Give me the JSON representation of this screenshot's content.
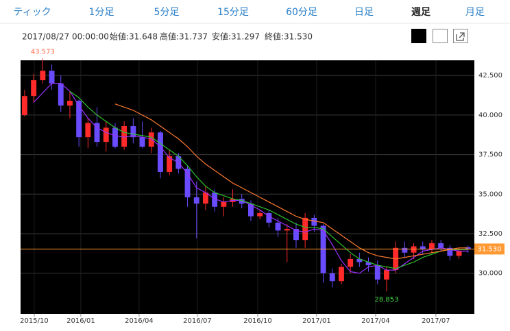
{
  "tabs": [
    "ティック",
    "1分足",
    "5分足",
    "15分足",
    "60分足",
    "日足",
    "週足",
    "月足"
  ],
  "selected_tab": 6,
  "info": [
    "2017/08/27 00:00:00",
    "始値:31.648",
    "高値:31.737",
    "安値:31.297",
    "終値:31.530"
  ],
  "chart_data": {
    "type": "candlestick",
    "up_color": "#ff2a2a",
    "down_color": "#6a4cff",
    "candles": [
      [
        40.0,
        41.6,
        39.9,
        41.2
      ],
      [
        41.2,
        42.6,
        40.8,
        42.2
      ],
      [
        42.2,
        43.573,
        42.0,
        42.8
      ],
      [
        42.8,
        43.2,
        41.6,
        42.0
      ],
      [
        42.0,
        42.5,
        40.2,
        40.6
      ],
      [
        40.6,
        41.5,
        39.8,
        40.9
      ],
      [
        40.9,
        41.0,
        38.0,
        38.6
      ],
      [
        38.6,
        39.8,
        37.9,
        39.5
      ],
      [
        39.5,
        40.5,
        38.0,
        38.3
      ],
      [
        38.3,
        39.6,
        37.7,
        39.2
      ],
      [
        39.2,
        39.5,
        37.9,
        38.0
      ],
      [
        38.0,
        39.6,
        37.8,
        39.3
      ],
      [
        39.3,
        39.8,
        38.2,
        38.6
      ],
      [
        38.6,
        39.6,
        37.9,
        38.0
      ],
      [
        38.0,
        39.2,
        37.6,
        38.9
      ],
      [
        38.9,
        39.0,
        36.0,
        36.4
      ],
      [
        36.4,
        37.8,
        36.2,
        37.4
      ],
      [
        37.4,
        37.6,
        36.3,
        36.6
      ],
      [
        36.6,
        36.8,
        34.2,
        34.8
      ],
      [
        34.8,
        35.8,
        32.2,
        34.4
      ],
      [
        34.4,
        35.5,
        34.0,
        35.1
      ],
      [
        35.1,
        35.3,
        33.9,
        34.2
      ],
      [
        34.2,
        34.8,
        33.6,
        34.5
      ],
      [
        34.5,
        35.3,
        34.2,
        34.7
      ],
      [
        34.7,
        35.0,
        34.1,
        34.4
      ],
      [
        34.4,
        34.6,
        33.3,
        33.6
      ],
      [
        33.6,
        34.0,
        33.4,
        33.8
      ],
      [
        33.8,
        34.0,
        32.9,
        33.2
      ],
      [
        33.2,
        33.5,
        32.3,
        32.7
      ],
      [
        32.7,
        33.1,
        30.7,
        32.8
      ],
      [
        32.8,
        33.2,
        31.6,
        32.1
      ],
      [
        32.1,
        33.8,
        31.6,
        33.5
      ],
      [
        33.5,
        33.7,
        32.6,
        33.0
      ],
      [
        33.0,
        33.1,
        29.4,
        30.0
      ],
      [
        30.0,
        30.3,
        29.1,
        29.5
      ],
      [
        29.5,
        30.6,
        29.3,
        30.4
      ],
      [
        30.4,
        31.2,
        30.0,
        30.9
      ],
      [
        30.9,
        31.3,
        30.4,
        30.7
      ],
      [
        30.7,
        31.0,
        30.1,
        30.5
      ],
      [
        30.5,
        30.8,
        29.3,
        29.6
      ],
      [
        29.6,
        30.4,
        28.853,
        30.2
      ],
      [
        30.2,
        32.0,
        30.0,
        31.6
      ],
      [
        31.6,
        32.0,
        31.0,
        31.3
      ],
      [
        31.3,
        31.9,
        30.9,
        31.7
      ],
      [
        31.7,
        32.0,
        31.2,
        31.5
      ],
      [
        31.5,
        32.1,
        31.3,
        31.9
      ],
      [
        31.9,
        32.1,
        31.4,
        31.6
      ],
      [
        31.6,
        31.8,
        30.8,
        31.1
      ],
      [
        31.1,
        31.6,
        30.9,
        31.4
      ],
      [
        31.648,
        31.737,
        31.297,
        31.53
      ]
    ],
    "moving_averages": [
      {
        "color": "#9b30ff",
        "values": [
          null,
          40.8,
          41.4,
          42.0,
          42.0,
          41.5,
          40.6,
          39.8,
          39.2,
          38.9,
          38.7,
          38.6,
          38.7,
          38.6,
          38.5,
          38.0,
          37.3,
          37.0,
          36.3,
          35.4,
          35.1,
          34.7,
          34.5,
          34.6,
          34.6,
          34.3,
          34.0,
          33.6,
          33.3,
          33.0,
          32.7,
          32.6,
          32.8,
          32.7,
          31.8,
          30.8,
          30.1,
          30.0,
          30.4,
          30.5,
          30.2,
          30.2,
          30.6,
          31.0,
          31.4,
          31.5,
          31.6,
          31.5,
          31.4,
          31.4
        ]
      },
      {
        "color": "#2ec02e",
        "values": [
          null,
          null,
          null,
          null,
          null,
          41.5,
          41.1,
          40.5,
          40.0,
          39.6,
          39.2,
          38.9,
          38.8,
          38.7,
          38.6,
          38.2,
          37.8,
          37.4,
          36.8,
          36.1,
          35.5,
          35.1,
          34.9,
          34.7,
          34.6,
          34.4,
          34.2,
          34.0,
          33.7,
          33.4,
          33.1,
          32.9,
          32.9,
          32.8,
          32.3,
          31.8,
          31.3,
          30.9,
          30.7,
          30.5,
          30.4,
          30.3,
          30.5,
          30.7,
          31.0,
          31.2,
          31.4,
          31.5,
          31.5,
          31.5
        ]
      },
      {
        "color": "#ff7a30",
        "values": [
          null,
          null,
          null,
          null,
          null,
          null,
          null,
          null,
          null,
          null,
          40.7,
          40.5,
          40.3,
          40.0,
          39.7,
          39.3,
          38.9,
          38.5,
          38.0,
          37.4,
          36.9,
          36.5,
          36.1,
          35.7,
          35.4,
          35.1,
          34.8,
          34.5,
          34.2,
          33.9,
          33.6,
          33.4,
          33.3,
          33.2,
          32.8,
          32.4,
          32.0,
          31.6,
          31.3,
          31.1,
          31.0,
          30.9,
          31.0,
          31.1,
          31.2,
          31.3,
          31.4,
          31.5,
          31.6,
          31.6
        ]
      }
    ],
    "xlim": [
      -0.45,
      49.7
    ],
    "xticks": [
      {
        "value": 1.06,
        "label": "2015/10"
      },
      {
        "value": 6.21,
        "label": "2016/01"
      },
      {
        "value": 12.65,
        "label": "2016/04"
      },
      {
        "value": 19.09,
        "label": "2016/07"
      },
      {
        "value": 25.76,
        "label": "2016/10"
      },
      {
        "value": 32.27,
        "label": "2017/01"
      },
      {
        "value": 38.79,
        "label": "2017/04"
      },
      {
        "value": 45.45,
        "label": "2017/07"
      }
    ],
    "ylim": [
      27.43,
      43.46
    ],
    "yticks": [
      {
        "value": 30,
        "label": "30.000"
      },
      {
        "value": 32.5,
        "label": "32.500"
      },
      {
        "value": 35,
        "label": "35.000"
      },
      {
        "value": 37.5,
        "label": "37.500"
      },
      {
        "value": 40,
        "label": "40.000"
      },
      {
        "value": 42.5,
        "label": "42.500"
      }
    ],
    "last_price": {
      "value": 31.53,
      "label": "31.530",
      "color": "#ff9933"
    },
    "high_label": {
      "value": 43.573,
      "label": "43.573",
      "index": 2,
      "color": "#ff6a4a"
    },
    "low_label": {
      "value": 28.853,
      "label": "28.853",
      "index": 40,
      "color": "#44dd44"
    },
    "grid": true
  }
}
